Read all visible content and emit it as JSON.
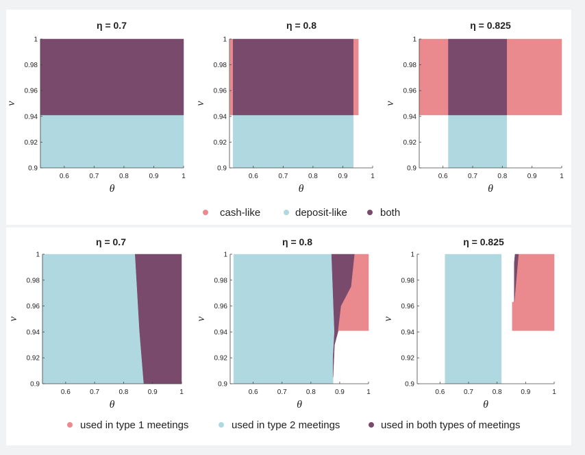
{
  "colors": {
    "cash": "#ea8a8e",
    "deposit": "#b0d8e0",
    "both": "#7a4a6c",
    "type1": "#ea8a8e",
    "type2": "#b0d8e0",
    "bothTypes": "#7a4a6c"
  },
  "legend_top": {
    "items": [
      {
        "label": "cash-like",
        "color": "#ea8a8e"
      },
      {
        "label": "deposit-like",
        "color": "#b0d8e0"
      },
      {
        "label": "both",
        "color": "#7a4a6c"
      }
    ]
  },
  "legend_bottom": {
    "items": [
      {
        "label": "used in type 1 meetings",
        "color": "#ea8a8e"
      },
      {
        "label": "used in type 2 meetings",
        "color": "#b0d8e0"
      },
      {
        "label": "used in both types of meetings",
        "color": "#7a4a6c"
      }
    ]
  },
  "corner_mark": "",
  "chart_data": [
    {
      "type": "area",
      "title": "η = 0.7",
      "xlabel": "θ",
      "ylabel": "ν",
      "xlim": [
        0.52,
        1.0
      ],
      "ylim": [
        0.9,
        1.0
      ],
      "xticks": [
        "0.6",
        "0.7",
        "0.8",
        "0.9",
        "1"
      ],
      "yticks": [
        "0.9",
        "0.92",
        "0.94",
        "0.96",
        "0.98",
        "1"
      ],
      "regions": [
        {
          "series": "deposit",
          "polygon": [
            [
              0.52,
              0.9
            ],
            [
              1.0,
              0.9
            ],
            [
              1.0,
              0.941
            ],
            [
              0.52,
              0.941
            ]
          ]
        },
        {
          "series": "both",
          "polygon": [
            [
              0.52,
              0.941
            ],
            [
              1.0,
              0.941
            ],
            [
              1.0,
              1.0
            ],
            [
              0.52,
              1.0
            ]
          ]
        }
      ]
    },
    {
      "type": "area",
      "title": "η = 0.8",
      "xlabel": "θ",
      "ylabel": "ν",
      "xlim": [
        0.52,
        1.0
      ],
      "ylim": [
        0.9,
        1.0
      ],
      "xticks": [
        "0.6",
        "0.7",
        "0.8",
        "0.9",
        "1"
      ],
      "yticks": [
        "0.9",
        "0.92",
        "0.94",
        "0.96",
        "0.98",
        "1"
      ],
      "regions": [
        {
          "series": "cash",
          "polygon": [
            [
              0.522,
              0.941
            ],
            [
              0.532,
              0.941
            ],
            [
              0.532,
              1.0
            ],
            [
              0.522,
              1.0
            ]
          ]
        },
        {
          "series": "cash",
          "polygon": [
            [
              0.935,
              0.941
            ],
            [
              0.952,
              0.941
            ],
            [
              0.952,
              1.0
            ],
            [
              0.935,
              1.0
            ]
          ]
        },
        {
          "series": "deposit",
          "polygon": [
            [
              0.532,
              0.9
            ],
            [
              0.935,
              0.9
            ],
            [
              0.935,
              0.941
            ],
            [
              0.532,
              0.941
            ]
          ]
        },
        {
          "series": "both",
          "polygon": [
            [
              0.532,
              0.941
            ],
            [
              0.935,
              0.941
            ],
            [
              0.935,
              1.0
            ],
            [
              0.532,
              1.0
            ]
          ]
        }
      ]
    },
    {
      "type": "area",
      "title": "η = 0.825",
      "xlabel": "θ",
      "ylabel": "ν",
      "xlim": [
        0.52,
        1.0
      ],
      "ylim": [
        0.9,
        1.0
      ],
      "xticks": [
        "0.6",
        "0.7",
        "0.8",
        "0.9",
        "1"
      ],
      "yticks": [
        "0.9",
        "0.92",
        "0.94",
        "0.96",
        "0.98",
        "1"
      ],
      "regions": [
        {
          "series": "cash",
          "polygon": [
            [
              0.52,
              0.941
            ],
            [
              0.618,
              0.941
            ],
            [
              0.618,
              1.0
            ],
            [
              0.52,
              1.0
            ]
          ]
        },
        {
          "series": "cash",
          "polygon": [
            [
              0.815,
              0.941
            ],
            [
              1.0,
              0.941
            ],
            [
              1.0,
              1.0
            ],
            [
              0.815,
              1.0
            ]
          ]
        },
        {
          "series": "deposit",
          "polygon": [
            [
              0.618,
              0.9
            ],
            [
              0.815,
              0.9
            ],
            [
              0.815,
              0.941
            ],
            [
              0.618,
              0.941
            ]
          ]
        },
        {
          "series": "both",
          "polygon": [
            [
              0.618,
              0.941
            ],
            [
              0.815,
              0.941
            ],
            [
              0.815,
              1.0
            ],
            [
              0.618,
              1.0
            ]
          ]
        }
      ]
    },
    {
      "type": "area",
      "title": "η = 0.7",
      "xlabel": "θ",
      "ylabel": "ν",
      "xlim": [
        0.52,
        1.0
      ],
      "ylim": [
        0.9,
        1.0
      ],
      "xticks": [
        "0.6",
        "0.7",
        "0.8",
        "0.9",
        "1"
      ],
      "yticks": [
        "0.9",
        "0.92",
        "0.94",
        "0.96",
        "0.98",
        "1"
      ],
      "regions": [
        {
          "series": "type2",
          "polygon": [
            [
              0.52,
              0.9
            ],
            [
              0.87,
              0.9
            ],
            [
              0.855,
              0.941
            ],
            [
              0.84,
              1.0
            ],
            [
              0.52,
              1.0
            ]
          ]
        },
        {
          "series": "bothTypes",
          "polygon": [
            [
              0.87,
              0.9
            ],
            [
              1.0,
              0.9
            ],
            [
              1.0,
              1.0
            ],
            [
              0.84,
              1.0
            ],
            [
              0.855,
              0.941
            ]
          ]
        }
      ]
    },
    {
      "type": "area",
      "title": "η = 0.8",
      "xlabel": "θ",
      "ylabel": "ν",
      "xlim": [
        0.52,
        1.0
      ],
      "ylim": [
        0.9,
        1.0
      ],
      "xticks": [
        "0.6",
        "0.7",
        "0.8",
        "0.9",
        "1"
      ],
      "yticks": [
        "0.9",
        "0.92",
        "0.94",
        "0.96",
        "0.98",
        "1"
      ],
      "regions": [
        {
          "series": "type2",
          "polygon": [
            [
              0.532,
              0.9
            ],
            [
              0.877,
              0.9
            ],
            [
              0.877,
              0.905
            ],
            [
              0.877,
              0.92
            ],
            [
              0.882,
              0.94
            ],
            [
              0.872,
              1.0
            ],
            [
              0.532,
              1.0
            ]
          ]
        },
        {
          "series": "bothTypes",
          "polygon": [
            [
              0.877,
              0.905
            ],
            [
              0.882,
              0.93
            ],
            [
              0.895,
              0.941
            ],
            [
              0.905,
              0.96
            ],
            [
              0.94,
              0.975
            ],
            [
              0.952,
              1.0
            ],
            [
              0.872,
              1.0
            ],
            [
              0.882,
              0.94
            ],
            [
              0.877,
              0.92
            ]
          ]
        },
        {
          "series": "type1",
          "polygon": [
            [
              0.895,
              0.941
            ],
            [
              1.0,
              0.941
            ],
            [
              1.0,
              1.0
            ],
            [
              0.952,
              1.0
            ],
            [
              0.94,
              0.975
            ],
            [
              0.905,
              0.96
            ]
          ]
        }
      ]
    },
    {
      "type": "area",
      "title": "η = 0.825",
      "xlabel": "θ",
      "ylabel": "ν",
      "xlim": [
        0.52,
        1.0
      ],
      "ylim": [
        0.9,
        1.0
      ],
      "xticks": [
        "0.6",
        "0.7",
        "0.8",
        "0.9",
        "1"
      ],
      "yticks": [
        "0.9",
        "0.92",
        "0.94",
        "0.96",
        "0.98",
        "1"
      ],
      "regions": [
        {
          "series": "type2",
          "polygon": [
            [
              0.618,
              0.9
            ],
            [
              0.815,
              0.9
            ],
            [
              0.815,
              1.0
            ],
            [
              0.618,
              1.0
            ]
          ]
        },
        {
          "series": "type1",
          "polygon": [
            [
              0.853,
              0.941
            ],
            [
              1.0,
              0.941
            ],
            [
              1.0,
              1.0
            ],
            [
              0.875,
              1.0
            ],
            [
              0.86,
              0.963
            ],
            [
              0.853,
              0.963
            ]
          ]
        },
        {
          "series": "bothTypes",
          "polygon": [
            [
              0.86,
              0.963
            ],
            [
              0.875,
              1.0
            ],
            [
              0.863,
              1.0
            ],
            [
              0.86,
              0.993
            ]
          ]
        }
      ]
    }
  ]
}
